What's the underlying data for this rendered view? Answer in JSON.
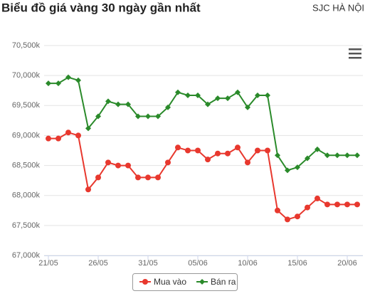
{
  "chart_data": {
    "type": "line",
    "title": "Biểu đồ giá vàng 30 ngày gần nhất",
    "subtitle": "SJC HÀ NỘI",
    "categories": [
      "21/05",
      null,
      null,
      null,
      null,
      "26/05",
      null,
      null,
      null,
      null,
      "31/05",
      null,
      null,
      null,
      null,
      "05/06",
      null,
      null,
      null,
      null,
      "10/06",
      null,
      null,
      null,
      null,
      "15/06",
      null,
      null,
      null,
      null,
      "20/06",
      null
    ],
    "series": [
      {
        "name": "Mua vào",
        "color": "#e8382e",
        "marker": "circle",
        "values": [
          68950,
          68950,
          69050,
          69000,
          68100,
          68300,
          68550,
          68500,
          68500,
          68300,
          68300,
          68300,
          68550,
          68800,
          68750,
          68750,
          68600,
          68700,
          68700,
          68800,
          68550,
          68750,
          68750,
          67750,
          67600,
          67650,
          67800,
          67950,
          67850,
          67850,
          67850,
          67850
        ]
      },
      {
        "name": "Bán ra",
        "color": "#2a8a2a",
        "marker": "diamond",
        "values": [
          69870,
          69870,
          69970,
          69920,
          69120,
          69320,
          69570,
          69520,
          69520,
          69320,
          69320,
          69320,
          69470,
          69720,
          69670,
          69670,
          69520,
          69620,
          69620,
          69720,
          69470,
          69670,
          69670,
          68670,
          68420,
          68470,
          68620,
          68770,
          68670,
          68670,
          68670,
          68670
        ]
      }
    ],
    "ylim": [
      67000,
      70500
    ],
    "yticks": [
      {
        "value": 67000,
        "label": "67,000k"
      },
      {
        "value": 67500,
        "label": "67,500k"
      },
      {
        "value": 68000,
        "label": "68,000k"
      },
      {
        "value": 68500,
        "label": "68,500k"
      },
      {
        "value": 69000,
        "label": "69,000k"
      },
      {
        "value": 69500,
        "label": "69,500k"
      },
      {
        "value": 70000,
        "label": "70,000k"
      },
      {
        "value": 70500,
        "label": "70,500k"
      }
    ],
    "grid": true,
    "legend": "bottom"
  }
}
